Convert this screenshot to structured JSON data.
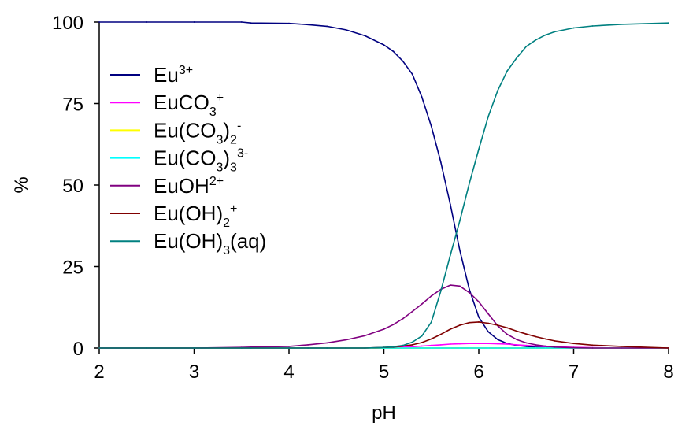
{
  "chart_data": {
    "type": "line",
    "xlabel": "pH",
    "ylabel": "%",
    "xlim": [
      2,
      8
    ],
    "ylim": [
      0,
      100
    ],
    "xticks": [
      "2",
      "3",
      "4",
      "5",
      "6",
      "7",
      "8"
    ],
    "yticks": [
      "0",
      "25",
      "50",
      "75",
      "100"
    ],
    "grid": false,
    "legend_position": "left, upper-middle",
    "x": [
      2.0,
      2.5,
      3.0,
      3.5,
      3.6,
      4.0,
      4.2,
      4.4,
      4.6,
      4.8,
      5.0,
      5.1,
      5.2,
      5.3,
      5.4,
      5.5,
      5.6,
      5.7,
      5.8,
      5.9,
      6.0,
      6.1,
      6.2,
      6.3,
      6.4,
      6.5,
      6.6,
      6.7,
      6.8,
      7.0,
      7.2,
      7.5,
      8.0
    ],
    "series": [
      {
        "name_parts": [
          [
            "Eu",
            "n"
          ],
          [
            "3+",
            "sup"
          ]
        ],
        "color": "#000080",
        "values": [
          100,
          100,
          100,
          100,
          99.7,
          99.6,
          99.2,
          98.7,
          97.6,
          95.8,
          93,
          91,
          88,
          84,
          77,
          68,
          57,
          44,
          30,
          18,
          9.5,
          5,
          2.6,
          1.4,
          0.8,
          0.5,
          0.3,
          0.2,
          0.1,
          0,
          0,
          0,
          0
        ]
      },
      {
        "name_parts": [
          [
            "EuCO",
            "n"
          ],
          [
            "3",
            "sub"
          ],
          [
            "+",
            "sup"
          ]
        ],
        "color": "#ff00ff",
        "values": [
          0,
          0,
          0,
          0,
          0,
          0,
          0,
          0,
          0,
          0,
          0.1,
          0.2,
          0.3,
          0.4,
          0.6,
          0.8,
          1.0,
          1.2,
          1.3,
          1.4,
          1.4,
          1.4,
          1.3,
          1.2,
          1.0,
          0.8,
          0.6,
          0.5,
          0.4,
          0.2,
          0.1,
          0,
          0
        ]
      },
      {
        "name_parts": [
          [
            "Eu(CO",
            "n"
          ],
          [
            "3",
            "sub"
          ],
          [
            ")",
            "n"
          ],
          [
            "2",
            "sub"
          ],
          [
            "-",
            "sup"
          ]
        ],
        "color": "#ffff00",
        "values": [
          0,
          0,
          0,
          0,
          0,
          0,
          0,
          0,
          0,
          0,
          0,
          0,
          0,
          0,
          0,
          0,
          0,
          0,
          0,
          0,
          0,
          0,
          0,
          0,
          0,
          0,
          0,
          0,
          0,
          0,
          0,
          0,
          0
        ]
      },
      {
        "name_parts": [
          [
            "Eu(CO",
            "n"
          ],
          [
            "3",
            "sub"
          ],
          [
            ")",
            "n"
          ],
          [
            "3",
            "sub"
          ],
          [
            "3-",
            "sup"
          ]
        ],
        "color": "#00ffff",
        "values": [
          0,
          0,
          0,
          0,
          0,
          0,
          0,
          0,
          0,
          0,
          0,
          0,
          0,
          0,
          0,
          0,
          0,
          0,
          0,
          0,
          0,
          0,
          0,
          0,
          0,
          0,
          0,
          0,
          0,
          0,
          0,
          0,
          0
        ]
      },
      {
        "name_parts": [
          [
            "EuOH",
            "n"
          ],
          [
            "2+",
            "sup"
          ]
        ],
        "color": "#800080",
        "values": [
          0,
          0,
          0,
          0.2,
          0.3,
          0.5,
          1.0,
          1.6,
          2.5,
          3.8,
          5.8,
          7.2,
          9.0,
          11.2,
          13.5,
          16.0,
          18.0,
          19.3,
          19.0,
          17.0,
          14.2,
          10.5,
          6.8,
          4.2,
          2.6,
          1.6,
          1.0,
          0.6,
          0.3,
          0.1,
          0,
          0,
          0
        ]
      },
      {
        "name_parts": [
          [
            "Eu(OH)",
            "n"
          ],
          [
            "2",
            "sub"
          ],
          [
            "+",
            "sup"
          ]
        ],
        "color": "#800000",
        "values": [
          0,
          0,
          0,
          0,
          0,
          0,
          0,
          0,
          0,
          0,
          0.2,
          0.3,
          0.6,
          1.0,
          1.7,
          2.8,
          4.2,
          5.8,
          7.0,
          7.8,
          8.0,
          7.6,
          7.0,
          6.2,
          5.2,
          4.3,
          3.5,
          2.8,
          2.2,
          1.4,
          0.9,
          0.5,
          0
        ]
      },
      {
        "name_parts": [
          [
            "Eu(OH)",
            "n"
          ],
          [
            "3",
            "sub"
          ],
          [
            "(aq)",
            "n"
          ]
        ],
        "color": "#008080",
        "values": [
          0,
          0,
          0,
          0,
          0,
          0,
          0,
          0,
          0,
          0,
          0.2,
          0.4,
          0.8,
          1.8,
          3.7,
          8.0,
          17.5,
          28.5,
          39.0,
          50.5,
          61.0,
          71.0,
          79.0,
          85.0,
          89.0,
          92.5,
          94.5,
          96.0,
          97.0,
          98.2,
          98.8,
          99.3,
          99.7
        ]
      }
    ]
  }
}
